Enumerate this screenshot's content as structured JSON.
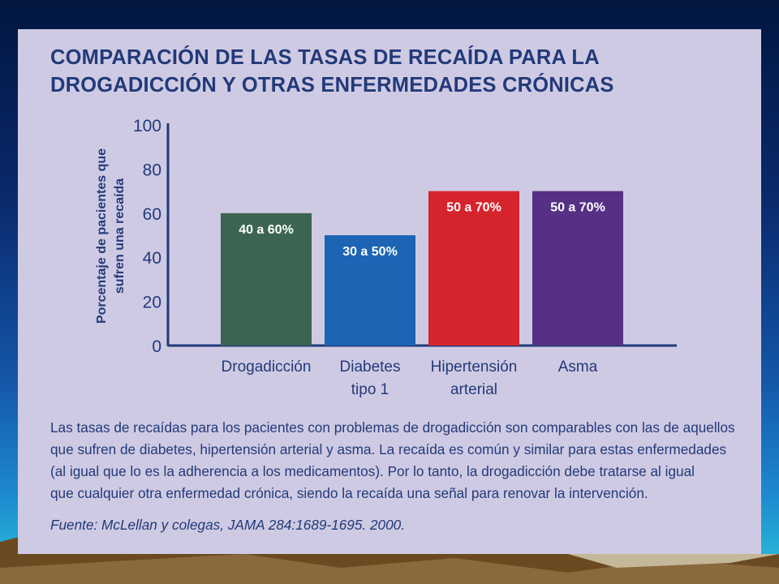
{
  "title_lines": [
    "COMPARACIÓN DE LAS TASAS DE RECAÍDA PARA LA",
    "DROGADICCIÓN Y OTRAS ENFERMEDADES CRÓNICAS"
  ],
  "caption_lines": [
    "Las tasas de recaídas para los pacientes con problemas de drogadicción son comparables con las de aquellos",
    "que sufren de diabetes, hipertensión arterial y asma. La recaída es común y similar para estas enfermedades",
    "(al igual que lo es la adherencia a los medicamentos). Por lo tanto, la drogadicción debe tratarse al igual",
    "que cualquier otra enfermedad crónica, siendo la recaída una señal para renovar la intervención."
  ],
  "source": "Fuente: McLellan y colegas, JAMA 284:1689-1695. 2000.",
  "chart_data": {
    "type": "bar",
    "title": "COMPARACIÓN DE LAS TASAS DE RECAÍDA PARA LA DROGADICCIÓN Y OTRAS ENFERMEDADES CRÓNICAS",
    "ylabel_lines": [
      "Porcentaje de pacientes que",
      "sufren una recaída"
    ],
    "xlabel": "",
    "ylim": [
      0,
      100
    ],
    "yticks": [
      0,
      20,
      40,
      60,
      80,
      100
    ],
    "grid": false,
    "categories": [
      {
        "lines": [
          "Drogadicción"
        ]
      },
      {
        "lines": [
          "Diabetes",
          "tipo 1"
        ]
      },
      {
        "lines": [
          "Hipertensión",
          "arterial"
        ]
      },
      {
        "lines": [
          "Asma"
        ]
      }
    ],
    "values": [
      60,
      50,
      70,
      70
    ],
    "bar_labels": [
      "40 a 60%",
      "30 a 50%",
      "50 a 70%",
      "50 a 70%"
    ],
    "colors": [
      "#3b6550",
      "#1c64b4",
      "#d6242c",
      "#553084"
    ]
  }
}
